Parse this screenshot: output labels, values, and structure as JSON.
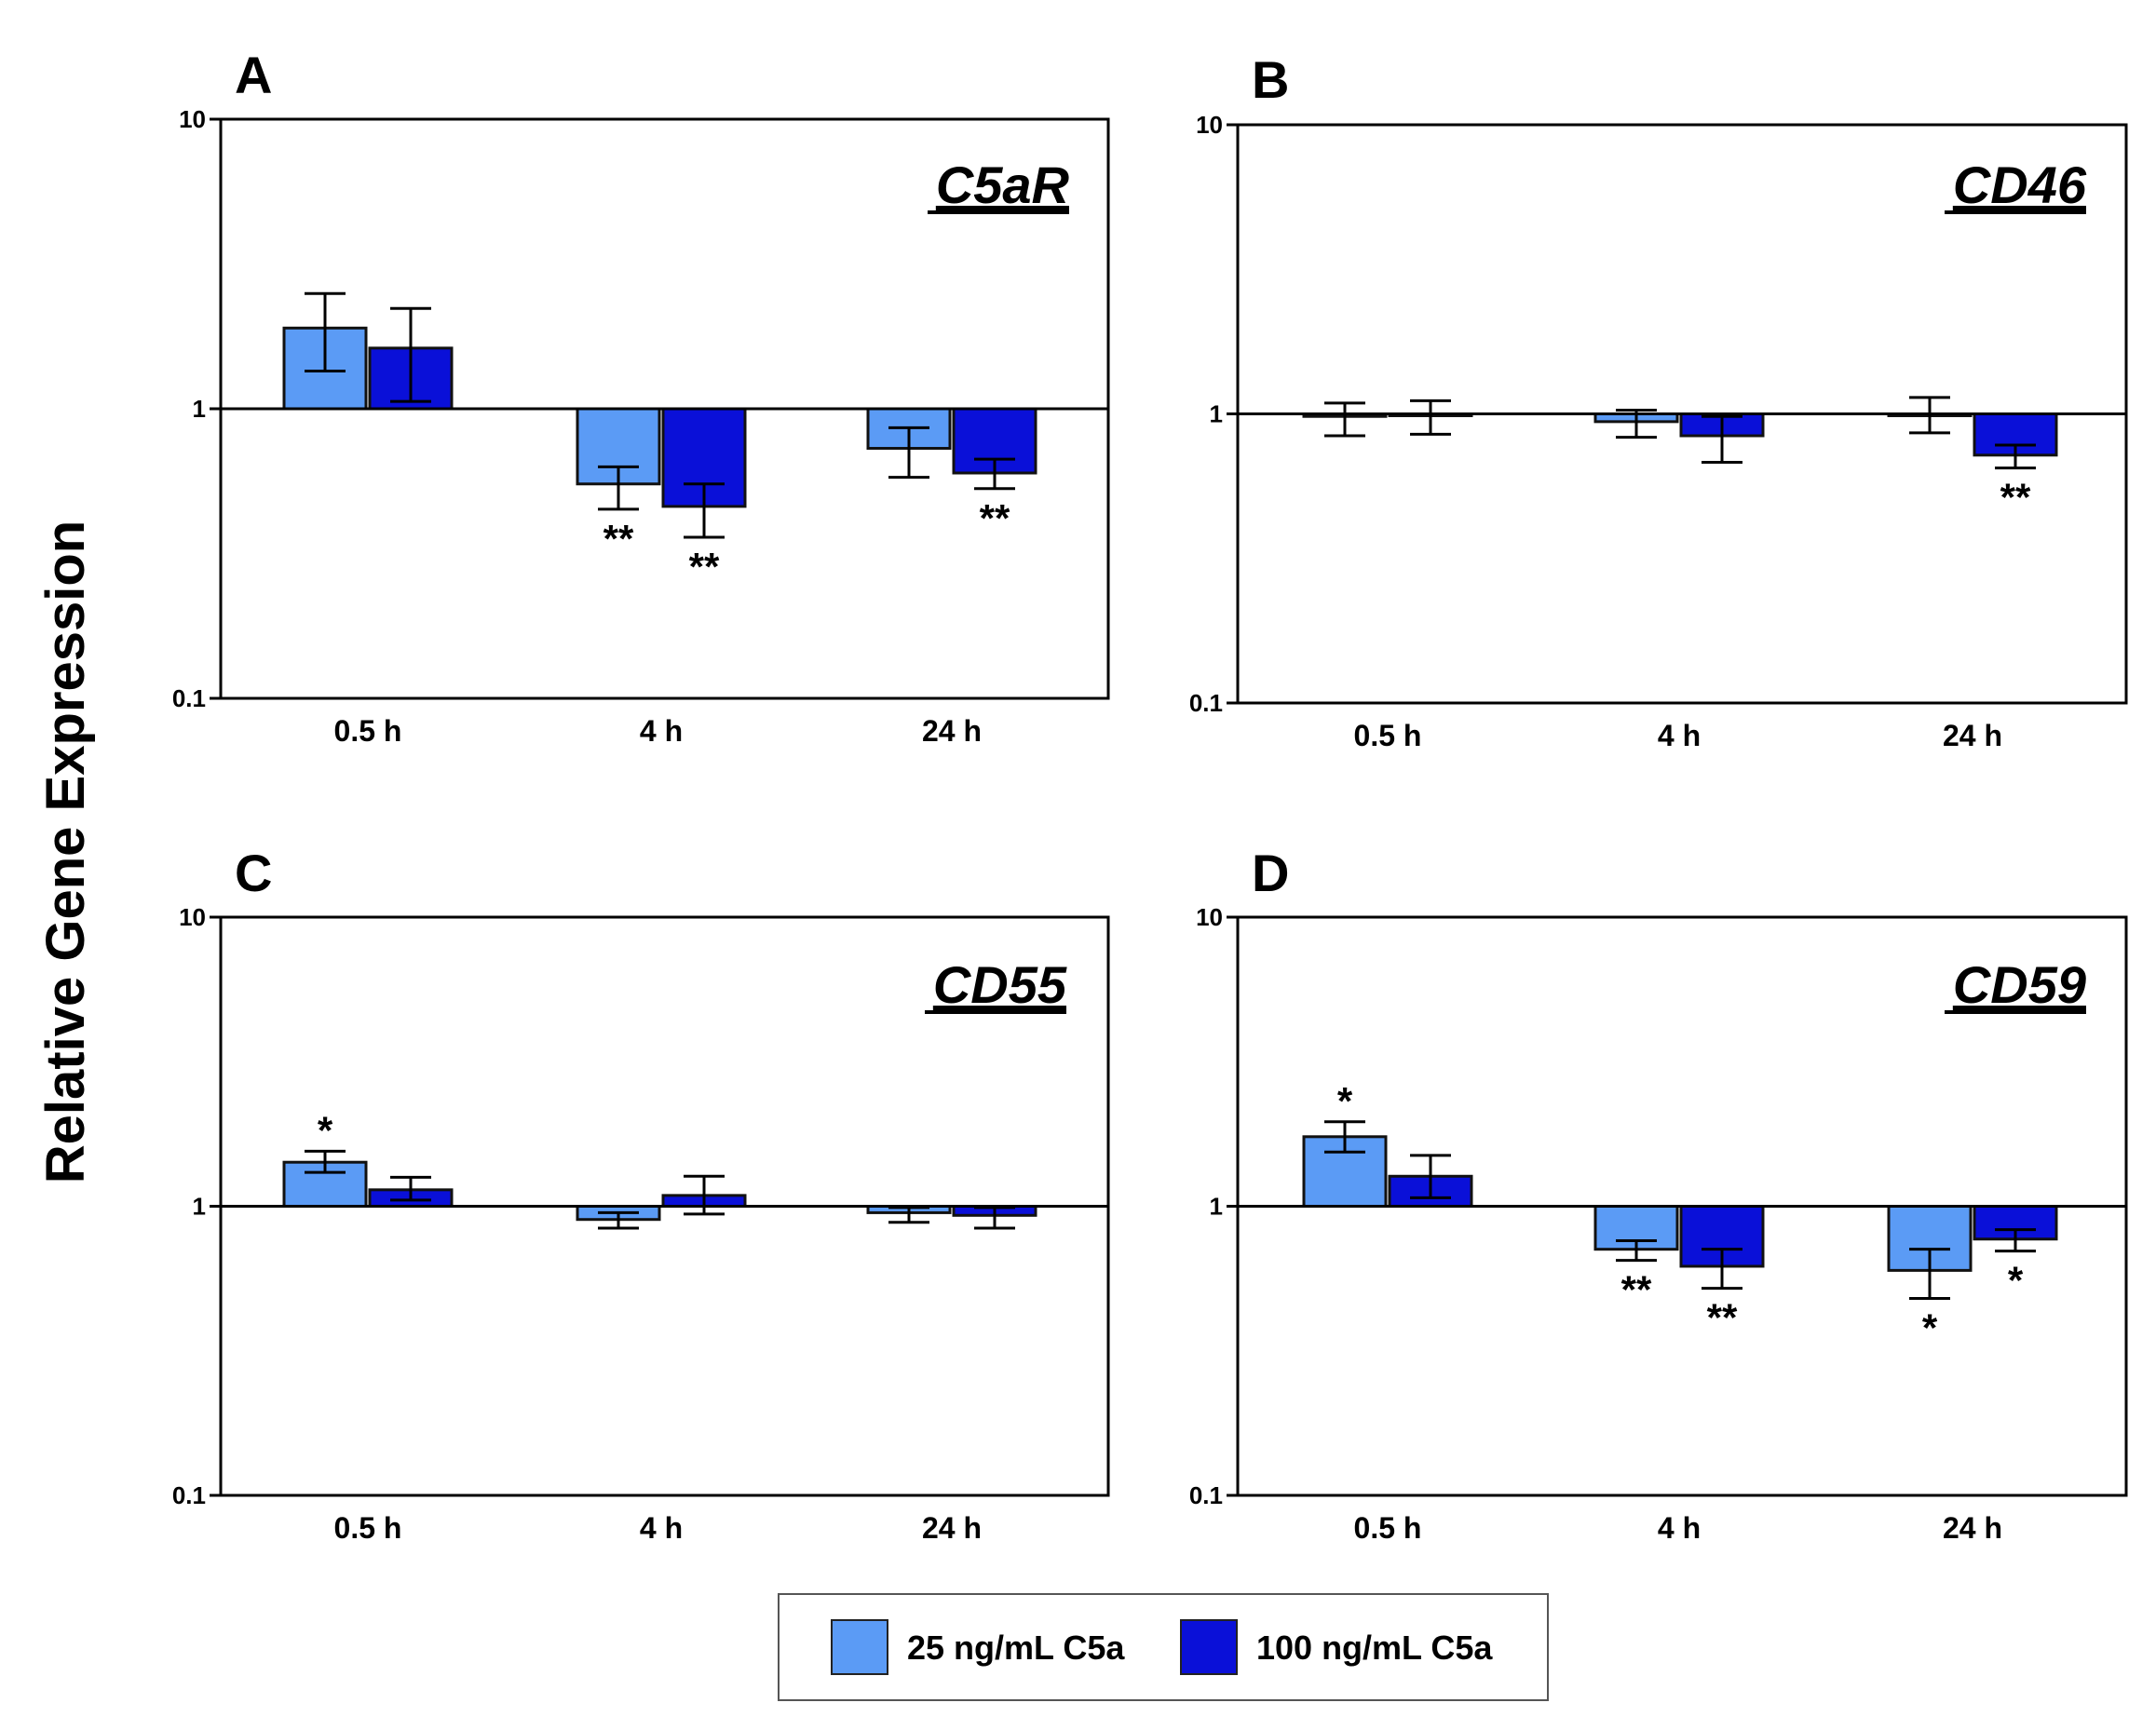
{
  "y_axis_label": "Relative Gene Expression",
  "legend": [
    {
      "label": "25 ng/mL C5a",
      "color": "#5B9BF5"
    },
    {
      "label": "100 ng/mL C5a",
      "color": "#0A10D8"
    }
  ],
  "chart_data": [
    {
      "type": "bar",
      "panel": "A",
      "title": "C5aR",
      "yscale": "log",
      "ylim": [
        0.1,
        10
      ],
      "yticks": [
        "10",
        "1",
        "0.1"
      ],
      "baseline": 1,
      "categories": [
        "0.5 h",
        "4 h",
        "24 h"
      ],
      "series": [
        {
          "name": "25 ng/mL C5a",
          "values": [
            1.9,
            0.55,
            0.73
          ],
          "err_low": [
            1.35,
            0.45,
            0.58
          ],
          "err_high": [
            2.5,
            0.63,
            0.86
          ],
          "sig": [
            "",
            "**",
            ""
          ]
        },
        {
          "name": "100 ng/mL C5a",
          "values": [
            1.62,
            0.46,
            0.6
          ],
          "err_low": [
            1.06,
            0.36,
            0.53
          ],
          "err_high": [
            2.22,
            0.55,
            0.67
          ],
          "sig": [
            "",
            "**",
            "**"
          ]
        }
      ]
    },
    {
      "type": "bar",
      "panel": "B",
      "title": "CD46",
      "yscale": "log",
      "ylim": [
        0.1,
        10
      ],
      "yticks": [
        "10",
        "1",
        "0.1"
      ],
      "baseline": 1,
      "categories": [
        "0.5 h",
        "4 h",
        "24 h"
      ],
      "series": [
        {
          "name": "25 ng/mL C5a",
          "values": [
            0.98,
            0.94,
            1.0
          ],
          "err_low": [
            0.84,
            0.83,
            0.86
          ],
          "err_high": [
            1.09,
            1.03,
            1.14
          ],
          "sig": [
            "",
            "",
            ""
          ]
        },
        {
          "name": "100 ng/mL C5a",
          "values": [
            0.99,
            0.84,
            0.72
          ],
          "err_low": [
            0.85,
            0.68,
            0.65
          ],
          "err_high": [
            1.11,
            0.98,
            0.78
          ],
          "sig": [
            "",
            "",
            "**"
          ]
        }
      ]
    },
    {
      "type": "bar",
      "panel": "C",
      "title": "CD55",
      "yscale": "log",
      "ylim": [
        0.1,
        10
      ],
      "yticks": [
        "10",
        "1",
        "0.1"
      ],
      "baseline": 1,
      "categories": [
        "0.5 h",
        "4 h",
        "24 h"
      ],
      "series": [
        {
          "name": "25 ng/mL C5a",
          "values": [
            1.42,
            0.9,
            0.95
          ],
          "err_low": [
            1.31,
            0.84,
            0.88
          ],
          "err_high": [
            1.55,
            0.95,
            0.99
          ],
          "sig": [
            "*",
            "",
            ""
          ]
        },
        {
          "name": "100 ng/mL C5a",
          "values": [
            1.14,
            1.09,
            0.93
          ],
          "err_low": [
            1.05,
            0.94,
            0.84
          ],
          "err_high": [
            1.26,
            1.27,
            0.99
          ],
          "sig": [
            "",
            "",
            ""
          ]
        }
      ]
    },
    {
      "type": "bar",
      "panel": "D",
      "title": "CD59",
      "yscale": "log",
      "ylim": [
        0.1,
        10
      ],
      "yticks": [
        "10",
        "1",
        "0.1"
      ],
      "baseline": 1,
      "categories": [
        "0.5 h",
        "4 h",
        "24 h"
      ],
      "series": [
        {
          "name": "25 ng/mL C5a",
          "values": [
            1.74,
            0.71,
            0.6
          ],
          "err_low": [
            1.54,
            0.65,
            0.48
          ],
          "err_high": [
            1.96,
            0.76,
            0.71
          ],
          "sig": [
            "*",
            "**",
            "*"
          ]
        },
        {
          "name": "100 ng/mL C5a",
          "values": [
            1.27,
            0.62,
            0.77
          ],
          "err_low": [
            1.07,
            0.52,
            0.7
          ],
          "err_high": [
            1.5,
            0.71,
            0.83
          ],
          "sig": [
            "",
            "**",
            "*"
          ]
        }
      ]
    }
  ]
}
